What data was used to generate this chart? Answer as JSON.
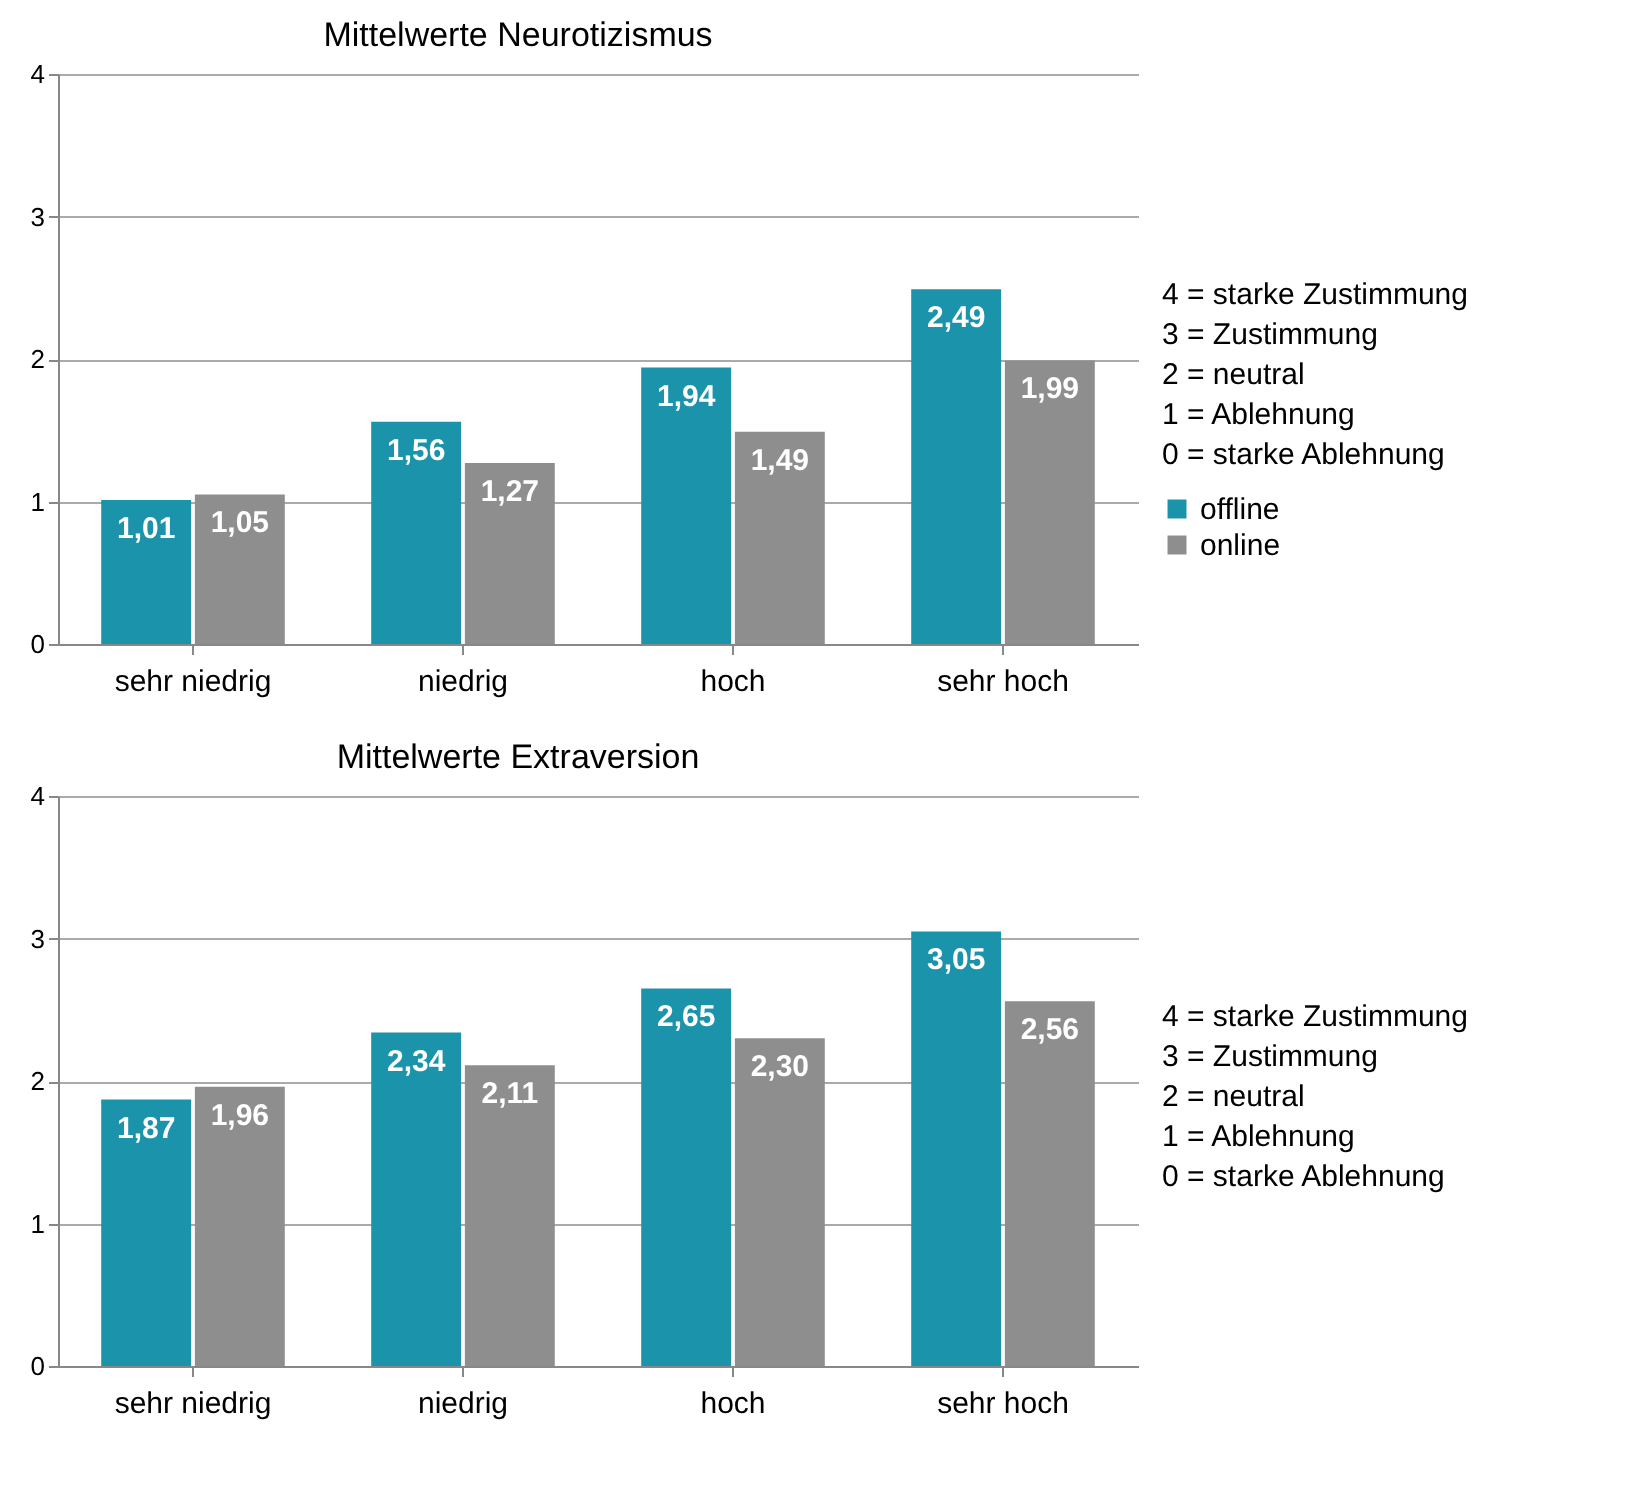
{
  "chart_data": [
    {
      "type": "bar",
      "title": "Mittelwerte Neurotizismus",
      "categories": [
        "sehr niedrig",
        "niedrig",
        "hoch",
        "sehr hoch"
      ],
      "series": [
        {
          "name": "offline",
          "color": "#1b93aa",
          "values": [
            1.01,
            1.56,
            1.94,
            2.49
          ],
          "value_labels": [
            "1,01",
            "1,56",
            "1,94",
            "2,49"
          ]
        },
        {
          "name": "online",
          "color": "#8e8e8e",
          "values": [
            1.05,
            1.27,
            1.49,
            1.99
          ],
          "value_labels": [
            "1,05",
            "1,27",
            "1,49",
            "1,99"
          ]
        }
      ],
      "ylim": [
        0,
        4
      ],
      "yticks": [
        0,
        1,
        2,
        3,
        4
      ],
      "grid": "y",
      "legend": "right",
      "annotations": [
        "4 = starke Zustimmung",
        "3 = Zustimmung",
        "2 = neutral",
        "1 = Ablehnung",
        "0 = starke Ablehnung"
      ]
    },
    {
      "type": "bar",
      "title": "Mittelwerte Extraversion",
      "categories": [
        "sehr niedrig",
        "niedrig",
        "hoch",
        "sehr hoch"
      ],
      "series": [
        {
          "name": "offline",
          "color": "#1b93aa",
          "values": [
            1.87,
            2.34,
            2.65,
            3.05
          ],
          "value_labels": [
            "1,87",
            "2,34",
            "2,65",
            "3,05"
          ]
        },
        {
          "name": "online",
          "color": "#8e8e8e",
          "values": [
            1.96,
            2.11,
            2.3,
            2.56
          ],
          "value_labels": [
            "1,96",
            "2,11",
            "2,30",
            "2,56"
          ]
        }
      ],
      "ylim": [
        0,
        4
      ],
      "yticks": [
        0,
        1,
        2,
        3,
        4
      ],
      "grid": "y",
      "legend": "right",
      "annotations": [
        "4 = starke Zustimmung",
        "3 = Zustimmung",
        "2 = neutral",
        "1 = Ablehnung",
        "0 = starke Ablehnung"
      ]
    }
  ]
}
